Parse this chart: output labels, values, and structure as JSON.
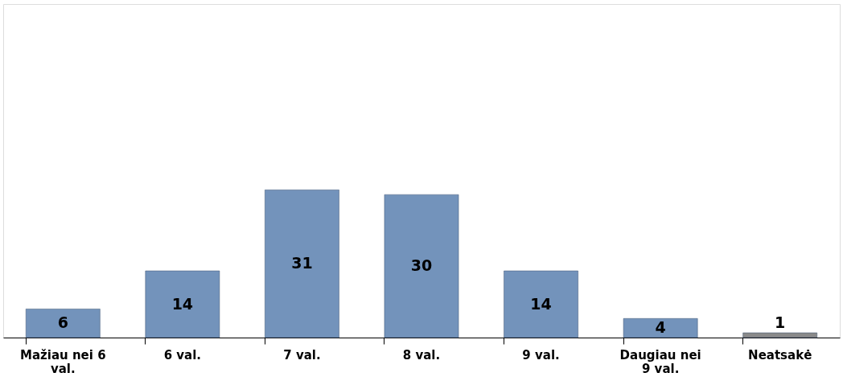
{
  "chart_data": {
    "type": "bar",
    "categories": [
      "Mažiau nei 6 val.",
      "6 val.",
      "7 val.",
      "8 val.",
      "9 val.",
      "Daugiau nei 9 val.",
      "Neatsakė"
    ],
    "values": [
      6,
      14,
      31,
      30,
      14,
      4,
      1
    ],
    "colors": [
      "#7393bb",
      "#7393bb",
      "#7393bb",
      "#7393bb",
      "#7393bb",
      "#7393bb",
      "#8a8a8a"
    ],
    "ylim": [
      0,
      70
    ],
    "data_labels": true,
    "grid": false
  }
}
